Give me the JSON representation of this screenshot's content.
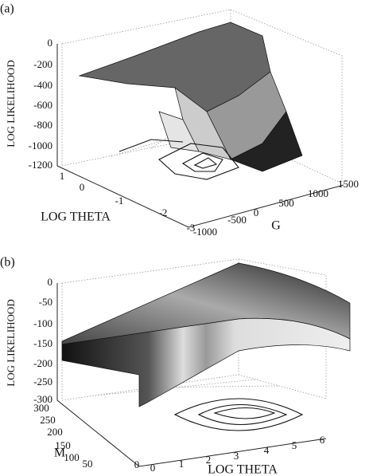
{
  "panels": [
    {
      "label": "(a)",
      "z_label": "LOG LIKELIHOOD",
      "x_label": "LOG THETA",
      "y_label": "G",
      "z_ticks": [
        "0",
        "-200",
        "-400",
        "-600",
        "-800",
        "-1000",
        "-1200"
      ],
      "x_ticks": [
        "1",
        "0",
        "-1",
        "-2",
        "-3"
      ],
      "y_ticks": [
        "-1000",
        "-500",
        "0",
        "500",
        "1000",
        "1500"
      ]
    },
    {
      "label": "(b)",
      "z_label": "LOG LIKELIHOOD",
      "x_label": "LOG THETA",
      "y_label": "M",
      "z_ticks": [
        "0",
        "-50",
        "-100",
        "-150",
        "-200",
        "-250",
        "-300"
      ],
      "x_ticks": [
        "0",
        "1",
        "2",
        "3",
        "4",
        "5",
        "6"
      ],
      "y_ticks": [
        "300",
        "250",
        "200",
        "150",
        "100",
        "50",
        "0"
      ]
    }
  ]
}
